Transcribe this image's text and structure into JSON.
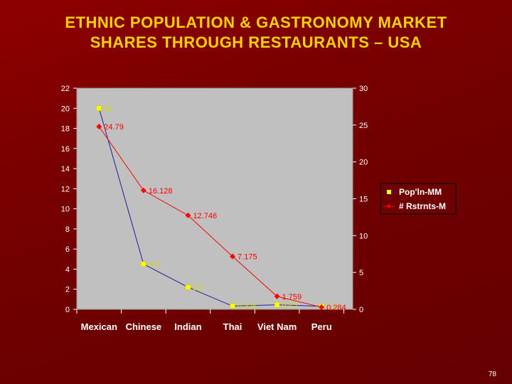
{
  "slide": {
    "title_line1": "ETHNIC POPULATION & GASTRONOMY MARKET",
    "title_line2": "SHARES THROUGH RESTAURANTS – USA",
    "page_number": "78"
  },
  "colors": {
    "background": "#7a0000",
    "title": "#ffd200",
    "plot_area": "#c0c0c0",
    "axis_text": "#ffffff",
    "population_line": "#1d1d9e",
    "population_marker": "#ffff00",
    "restaurants": "#ff0000"
  },
  "chart_data": {
    "type": "line",
    "categories": [
      "Mexican",
      "Chinese",
      "Indian",
      "Thai",
      "Viet Nam",
      "Peru"
    ],
    "category_labels": [
      "Mexican",
      "Chinese",
      "Indian",
      "Thai",
      "Viet Nam",
      "Peru"
    ],
    "x": [
      0.5,
      1.5,
      2.5,
      3.5,
      4.5,
      5.5
    ],
    "xlim": [
      0,
      6.2
    ],
    "y_left": {
      "ylim": [
        0,
        22
      ],
      "ticks": [
        0,
        2,
        4,
        6,
        8,
        10,
        12,
        14,
        16,
        18,
        20,
        22
      ],
      "tick_labels": [
        "0",
        "2",
        "4",
        "6",
        "8",
        "10",
        "12",
        "14",
        "16",
        "18",
        "20",
        "22"
      ]
    },
    "y_right": {
      "ylim": [
        0,
        30
      ],
      "ticks": [
        0,
        5,
        10,
        15,
        20,
        25,
        30
      ],
      "tick_labels": [
        "0",
        "5",
        "10",
        "15",
        "20",
        "25",
        "30"
      ]
    },
    "legend_position": "right",
    "grid": false,
    "series": [
      {
        "name": "Pop'ln-MM",
        "axis": "left",
        "values": [
          20,
          4.5,
          2.2,
          0.325,
          0.45,
          0.3
        ],
        "labels": [
          "20",
          "4.5",
          "2.2",
          "0.325",
          "0.45",
          "0.3"
        ]
      },
      {
        "name": "# Rstrnts-M",
        "axis": "right",
        "values": [
          24.79,
          16.128,
          12.746,
          7.175,
          1.759,
          0.284
        ],
        "labels": [
          "24.79",
          "16.128",
          "12.746",
          "7.175",
          "1.759",
          "0.284"
        ]
      }
    ]
  }
}
